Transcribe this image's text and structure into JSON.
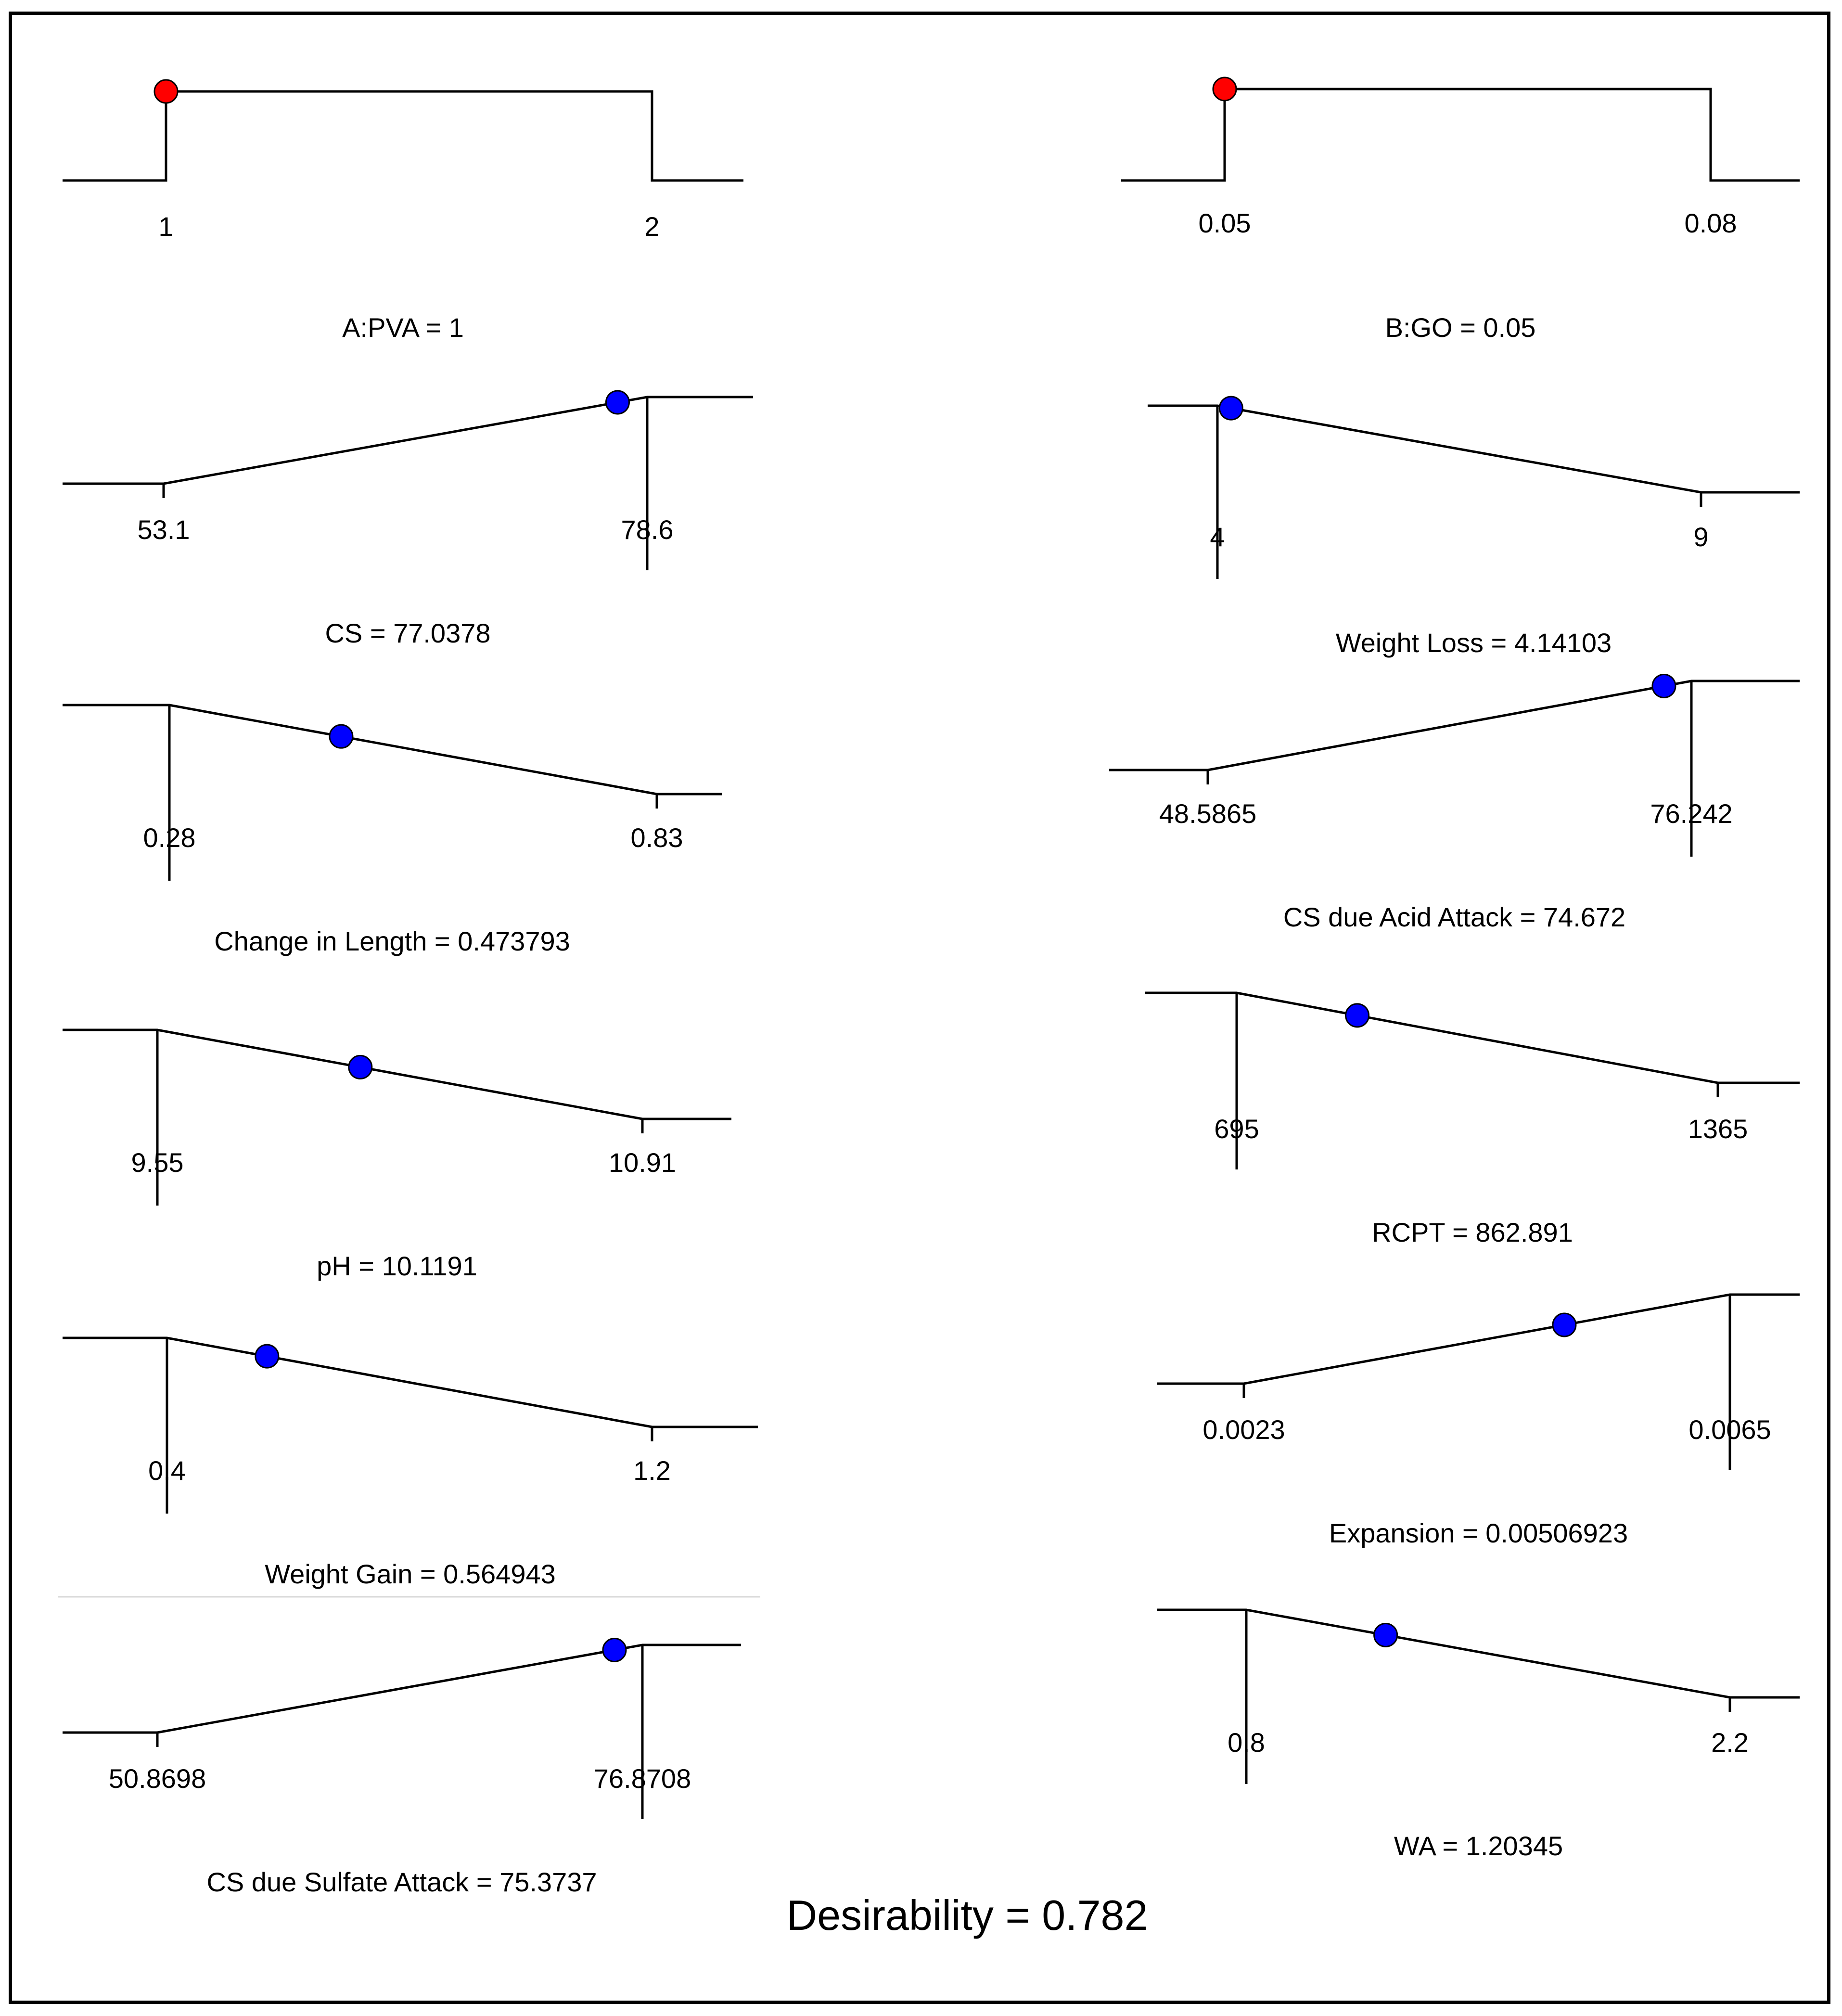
{
  "chart_data": {
    "type": "desirability-ramps",
    "panels": [
      {
        "label": "A:PVA = 1",
        "goal": "in range",
        "low_label": "1",
        "high_label": "2",
        "low": 1,
        "high": 2,
        "value": 1,
        "marker": "factor"
      },
      {
        "label": "B:GO = 0.05",
        "goal": "in range",
        "low_label": "0.05",
        "high_label": "0.08",
        "low": 0.05,
        "high": 0.08,
        "value": 0.05,
        "marker": "factor"
      },
      {
        "label": "CS = 77.0378",
        "goal": "maximize",
        "low_label": "53.1",
        "high_label": "78.6",
        "low": 53.1,
        "high": 78.6,
        "value": 77.0378,
        "marker": "response"
      },
      {
        "label": "Weight Loss = 4.14103",
        "goal": "minimize",
        "low_label": "4",
        "high_label": "9",
        "low": 4,
        "high": 9,
        "value": 4.14103,
        "marker": "response"
      },
      {
        "label": "Change in Length = 0.473793",
        "goal": "minimize",
        "low_label": "0.28",
        "high_label": "0.83",
        "low": 0.28,
        "high": 0.83,
        "value": 0.473793,
        "marker": "response"
      },
      {
        "label": "CS due Acid Attack = 74.672",
        "goal": "maximize",
        "low_label": "48.5865",
        "high_label": "76.242",
        "low": 48.5865,
        "high": 76.242,
        "value": 74.672,
        "marker": "response"
      },
      {
        "label": "pH = 10.1191",
        "goal": "minimize",
        "low_label": "9.55",
        "high_label": "10.91",
        "low": 9.55,
        "high": 10.91,
        "value": 10.1191,
        "marker": "response"
      },
      {
        "label": "RCPT = 862.891",
        "goal": "minimize",
        "low_label": "695",
        "high_label": "1365",
        "low": 695,
        "high": 1365,
        "value": 862.891,
        "marker": "response"
      },
      {
        "label": "Weight Gain = 0.564943",
        "goal": "minimize",
        "low_label": "0.4",
        "high_label": "1.2",
        "low": 0.4,
        "high": 1.2,
        "value": 0.564943,
        "marker": "response"
      },
      {
        "label": "Expansion = 0.00506923",
        "goal": "maximize",
        "low_label": "0.0023",
        "high_label": "0.0065",
        "low": 0.0023,
        "high": 0.0065,
        "value": 0.00506923,
        "marker": "response"
      },
      {
        "label": "CS due Sulfate Attack = 75.3737",
        "goal": "maximize",
        "low_label": "50.8698",
        "high_label": "76.8708",
        "low": 50.8698,
        "high": 76.8708,
        "value": 75.3737,
        "marker": "response"
      },
      {
        "label": "WA = 1.20345",
        "goal": "minimize",
        "low_label": "0.8",
        "high_label": "2.2",
        "low": 0.8,
        "high": 2.2,
        "value": 1.20345,
        "marker": "response"
      }
    ],
    "desirability": "Desirability = 0.782",
    "colors": {
      "factor_marker": "#ff0000",
      "response_marker": "#0000ff",
      "line": "#000000"
    }
  }
}
